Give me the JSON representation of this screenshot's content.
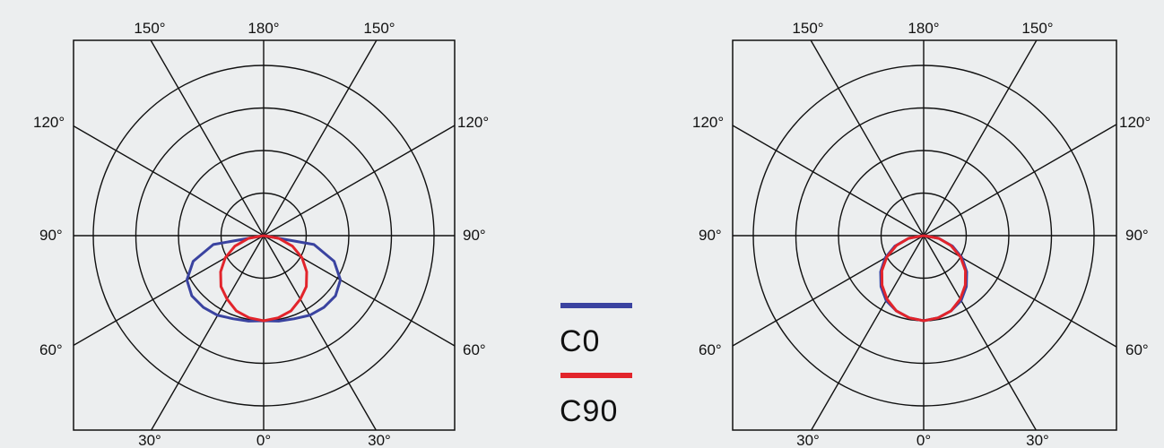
{
  "colors": {
    "background": "#eceeef",
    "grid": "#111111",
    "c0": "#3a43a0",
    "c90": "#e2242b"
  },
  "legend": {
    "items": [
      {
        "label": "C0",
        "color": "#3a43a0"
      },
      {
        "label": "C90",
        "color": "#e2242b"
      }
    ]
  },
  "chart_data": [
    {
      "type": "polar",
      "title": "",
      "angle_labels": {
        "top": [
          "150°",
          "180°",
          "150°"
        ],
        "left": [
          "120°",
          "90°",
          "60°"
        ],
        "right": [
          "120°",
          "90°",
          "60°"
        ],
        "bottom": [
          "30°",
          "0°",
          "30°"
        ]
      },
      "grid_angles_deg": [
        0,
        30,
        60,
        90,
        120,
        150,
        180
      ],
      "radial_range": [
        0,
        1
      ],
      "rings": [
        0.25,
        0.5,
        0.75,
        1.0
      ],
      "grid": true,
      "series": [
        {
          "name": "C0",
          "theta": [
            0,
            10,
            20,
            30,
            40,
            50,
            60,
            70,
            80,
            90
          ],
          "r": [
            0.5,
            0.51,
            0.52,
            0.54,
            0.55,
            0.55,
            0.52,
            0.44,
            0.3,
            0.0
          ]
        },
        {
          "name": "C90",
          "theta": [
            0,
            10,
            20,
            30,
            40,
            50,
            60,
            70,
            80,
            90
          ],
          "r": [
            0.5,
            0.49,
            0.47,
            0.43,
            0.39,
            0.33,
            0.26,
            0.18,
            0.09,
            0.0
          ]
        }
      ]
    },
    {
      "type": "polar",
      "title": "",
      "angle_labels": {
        "top": [
          "150°",
          "180°",
          "150°"
        ],
        "left": [
          "120°",
          "90°",
          "60°"
        ],
        "right": [
          "120°",
          "90°",
          "60°"
        ],
        "bottom": [
          "30°",
          "0°",
          "30°"
        ]
      },
      "grid_angles_deg": [
        0,
        30,
        60,
        90,
        120,
        150,
        180
      ],
      "radial_range": [
        0,
        1
      ],
      "rings": [
        0.25,
        0.5,
        0.75,
        1.0
      ],
      "grid": true,
      "series": [
        {
          "name": "C0",
          "theta": [
            0,
            10,
            20,
            30,
            40,
            50,
            60,
            70,
            80,
            90
          ],
          "r": [
            0.5,
            0.49,
            0.47,
            0.44,
            0.39,
            0.33,
            0.26,
            0.18,
            0.09,
            0.0
          ]
        },
        {
          "name": "C90",
          "theta": [
            0,
            10,
            20,
            30,
            40,
            50,
            60,
            70,
            80,
            90
          ],
          "r": [
            0.5,
            0.49,
            0.47,
            0.43,
            0.38,
            0.32,
            0.25,
            0.17,
            0.09,
            0.0
          ]
        }
      ]
    }
  ]
}
